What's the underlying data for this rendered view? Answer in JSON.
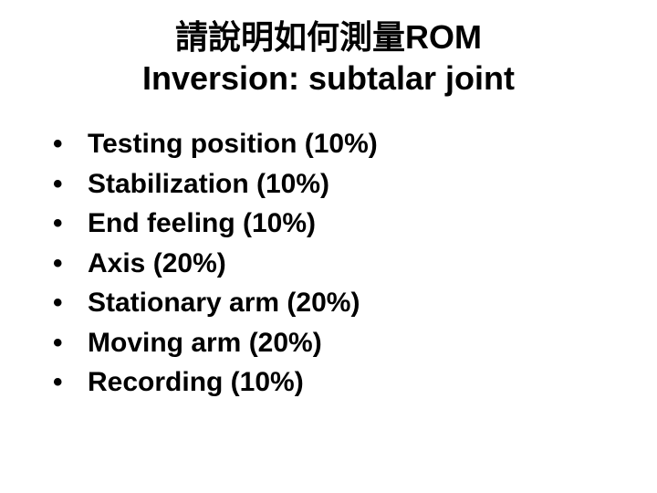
{
  "title": {
    "line1": "請說明如何測量ROM",
    "line2": "Inversion: subtalar joint",
    "fontsize_line1": 36,
    "fontsize_line2": 36,
    "color": "#000000",
    "weight": "bold",
    "align": "center"
  },
  "bullets": {
    "items": [
      "Testing position (10%)",
      "Stabilization (10%)",
      "End feeling (10%)",
      "Axis (20%)",
      "Stationary arm (20%)",
      "Moving arm (20%)",
      "Recording (10%)"
    ],
    "fontsize": 30,
    "color": "#000000",
    "weight": "bold",
    "marker": "•"
  },
  "background_color": "#ffffff"
}
